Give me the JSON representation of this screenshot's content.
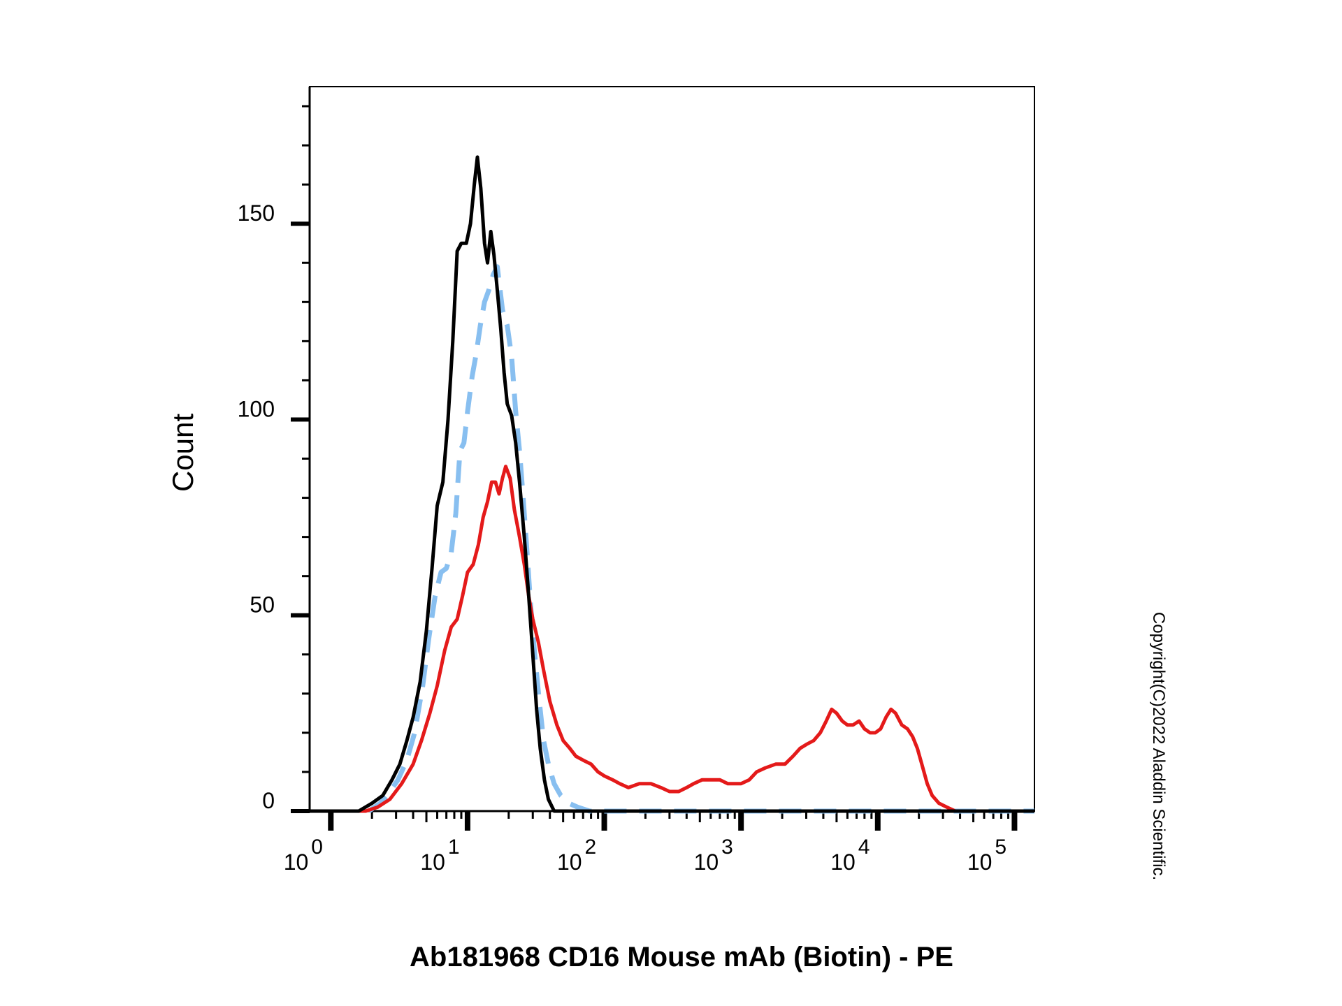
{
  "chart_data": {
    "type": "line",
    "title": "",
    "xlabel": "Ab181968 CD16 Mouse mAb (Biotin) - PE",
    "ylabel": "Count",
    "x_scale": "log",
    "xlim": [
      0.7,
      140000
    ],
    "ylim": [
      0,
      185
    ],
    "y_ticks": [
      0,
      50,
      100,
      150
    ],
    "x_ticks": [
      {
        "base": "10",
        "exp": "0",
        "value": 1
      },
      {
        "base": "10",
        "exp": "1",
        "value": 10
      },
      {
        "base": "10",
        "exp": "2",
        "value": 100
      },
      {
        "base": "10",
        "exp": "3",
        "value": 1000
      },
      {
        "base": "10",
        "exp": "4",
        "value": 10000
      },
      {
        "base": "10",
        "exp": "5",
        "value": 100000
      }
    ],
    "grid": false,
    "legend": "none",
    "annotation": "Copyright(C)2022 Aladdin Scientific.",
    "series": [
      {
        "color": "#000000",
        "dash": "solid",
        "points": [
          [
            0.7,
            0
          ],
          [
            1.6,
            0
          ],
          [
            2.0,
            2
          ],
          [
            2.4,
            4
          ],
          [
            2.8,
            8
          ],
          [
            3.2,
            12
          ],
          [
            3.6,
            18
          ],
          [
            4.0,
            24
          ],
          [
            4.5,
            33
          ],
          [
            5.0,
            46
          ],
          [
            5.5,
            62
          ],
          [
            6.0,
            78
          ],
          [
            6.6,
            84
          ],
          [
            7.2,
            100
          ],
          [
            7.8,
            120
          ],
          [
            8.4,
            143
          ],
          [
            9.0,
            145
          ],
          [
            9.8,
            145
          ],
          [
            10.5,
            150
          ],
          [
            11.2,
            160
          ],
          [
            11.8,
            167
          ],
          [
            12.5,
            159
          ],
          [
            13.3,
            145
          ],
          [
            14.0,
            140
          ],
          [
            14.8,
            148
          ],
          [
            15.6,
            142
          ],
          [
            16.5,
            133
          ],
          [
            17.5,
            123
          ],
          [
            18.5,
            112
          ],
          [
            19.5,
            104
          ],
          [
            21.0,
            101
          ],
          [
            22.5,
            94
          ],
          [
            24.0,
            84
          ],
          [
            26.0,
            70
          ],
          [
            28.0,
            55
          ],
          [
            30.0,
            40
          ],
          [
            32.0,
            26
          ],
          [
            34.0,
            16
          ],
          [
            36.5,
            8
          ],
          [
            39.0,
            3
          ],
          [
            43.0,
            0
          ],
          [
            140000,
            0
          ]
        ]
      },
      {
        "color": "#88bff0",
        "dash": "dashed",
        "points": [
          [
            1.9,
            0
          ],
          [
            2.3,
            2
          ],
          [
            2.7,
            5
          ],
          [
            3.1,
            8
          ],
          [
            3.6,
            13
          ],
          [
            4.1,
            20
          ],
          [
            4.7,
            32
          ],
          [
            5.2,
            44
          ],
          [
            5.8,
            55
          ],
          [
            6.4,
            61
          ],
          [
            7.0,
            62
          ],
          [
            7.6,
            66
          ],
          [
            8.2,
            76
          ],
          [
            8.8,
            92
          ],
          [
            9.4,
            94
          ],
          [
            10.0,
            102
          ],
          [
            10.8,
            111
          ],
          [
            11.6,
            117
          ],
          [
            12.4,
            124
          ],
          [
            13.3,
            130
          ],
          [
            14.3,
            133
          ],
          [
            15.4,
            137
          ],
          [
            16.5,
            139
          ],
          [
            18.0,
            128
          ],
          [
            19.5,
            124
          ],
          [
            21.0,
            116
          ],
          [
            22.5,
            102
          ],
          [
            24.0,
            92
          ],
          [
            25.5,
            80
          ],
          [
            27.0,
            68
          ],
          [
            29.0,
            52
          ],
          [
            31.0,
            40
          ],
          [
            33.5,
            28
          ],
          [
            36.0,
            18
          ],
          [
            39.0,
            12
          ],
          [
            43.0,
            7
          ],
          [
            48.0,
            4
          ],
          [
            55.0,
            2
          ],
          [
            64.0,
            1
          ],
          [
            78.0,
            0
          ],
          [
            140000,
            0
          ]
        ]
      },
      {
        "color": "#e41a1a",
        "dash": "solid",
        "points": [
          [
            0.7,
            0
          ],
          [
            1.8,
            0
          ],
          [
            2.2,
            1
          ],
          [
            2.7,
            3
          ],
          [
            3.3,
            7
          ],
          [
            4.0,
            12
          ],
          [
            4.6,
            18
          ],
          [
            5.3,
            25
          ],
          [
            6.0,
            32
          ],
          [
            6.8,
            41
          ],
          [
            7.6,
            47
          ],
          [
            8.4,
            49
          ],
          [
            9.2,
            55
          ],
          [
            10.0,
            61
          ],
          [
            11.0,
            63
          ],
          [
            12.0,
            68
          ],
          [
            13.0,
            75
          ],
          [
            14.0,
            79
          ],
          [
            15.0,
            84
          ],
          [
            16.0,
            84
          ],
          [
            17.0,
            81
          ],
          [
            18.0,
            85
          ],
          [
            19.0,
            88
          ],
          [
            20.5,
            85
          ],
          [
            22.0,
            77
          ],
          [
            24.0,
            70
          ],
          [
            26.0,
            63
          ],
          [
            28.0,
            55
          ],
          [
            30.0,
            49
          ],
          [
            33.0,
            43
          ],
          [
            36.0,
            36
          ],
          [
            40.0,
            28
          ],
          [
            45.0,
            22
          ],
          [
            50.0,
            18
          ],
          [
            56.0,
            16
          ],
          [
            62.0,
            14
          ],
          [
            70.0,
            13
          ],
          [
            80.0,
            12
          ],
          [
            90.0,
            10
          ],
          [
            100.0,
            9
          ],
          [
            115.0,
            8
          ],
          [
            130.0,
            7
          ],
          [
            150.0,
            6
          ],
          [
            180.0,
            7
          ],
          [
            220.0,
            7
          ],
          [
            260.0,
            6
          ],
          [
            300.0,
            5
          ],
          [
            350.0,
            5
          ],
          [
            400.0,
            6
          ],
          [
            450.0,
            7
          ],
          [
            520.0,
            8
          ],
          [
            600.0,
            8
          ],
          [
            700.0,
            8
          ],
          [
            800.0,
            7
          ],
          [
            900.0,
            7
          ],
          [
            1000.0,
            7
          ],
          [
            1150.0,
            8
          ],
          [
            1300.0,
            10
          ],
          [
            1500.0,
            11
          ],
          [
            1800.0,
            12
          ],
          [
            2100.0,
            12
          ],
          [
            2400.0,
            14
          ],
          [
            2700.0,
            16
          ],
          [
            3000.0,
            17
          ],
          [
            3400.0,
            18
          ],
          [
            3800.0,
            20
          ],
          [
            4200.0,
            23
          ],
          [
            4600.0,
            26
          ],
          [
            5000.0,
            25
          ],
          [
            5500.0,
            23
          ],
          [
            6000.0,
            22
          ],
          [
            6600.0,
            22
          ],
          [
            7300.0,
            23
          ],
          [
            8000.0,
            21
          ],
          [
            8800.0,
            20
          ],
          [
            9600.0,
            20
          ],
          [
            10500.0,
            21
          ],
          [
            11500.0,
            24
          ],
          [
            12500.0,
            26
          ],
          [
            13500.0,
            25
          ],
          [
            15000.0,
            22
          ],
          [
            16500.0,
            21
          ],
          [
            18000.0,
            19
          ],
          [
            19500.0,
            16
          ],
          [
            21000.0,
            12
          ],
          [
            23000.0,
            7
          ],
          [
            25000.0,
            4
          ],
          [
            28000.0,
            2
          ],
          [
            32000.0,
            1
          ],
          [
            37000.0,
            0
          ],
          [
            140000,
            0
          ]
        ]
      }
    ]
  }
}
